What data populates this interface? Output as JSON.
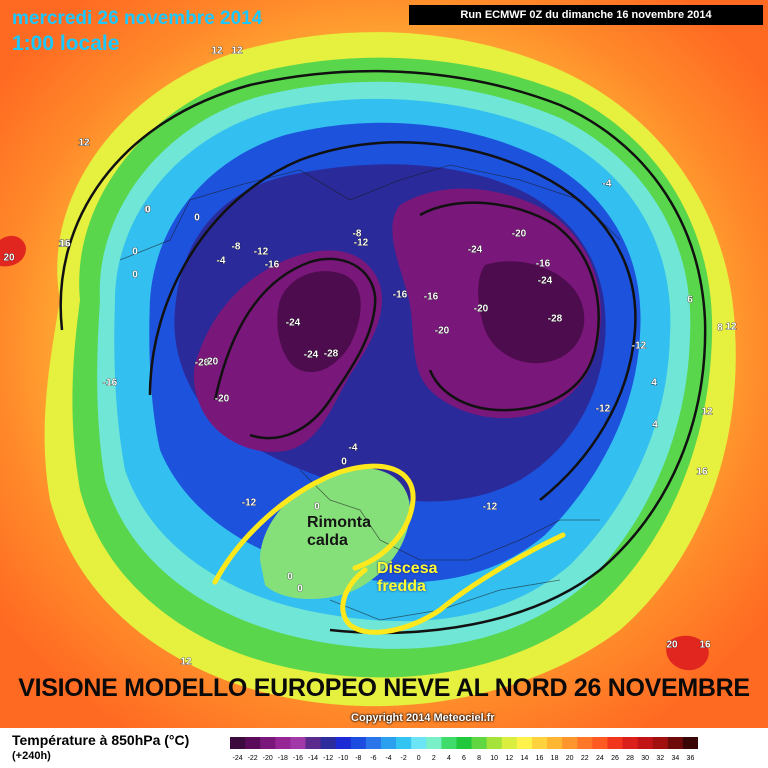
{
  "header": {
    "date": "mercredi 26 novembre 2014",
    "time": "1:00 locale",
    "run": "Run ECMWF 0Z du dimanche 16 novembre 2014"
  },
  "caption": "VISIONE MODELLO EUROPEO NEVE AL NORD 26 NOVEMBRE",
  "copyright": "Copyright 2014 Meteociel.fr",
  "legend": {
    "title": "Température à 850hPa (°C)",
    "subtitle": "(+240h)",
    "ticks": [
      "-24",
      "-22",
      "-20",
      "-18",
      "-16",
      "-14",
      "-12",
      "-10",
      "-8",
      "-6",
      "-4",
      "-2",
      "0",
      "2",
      "4",
      "6",
      "8",
      "10",
      "12",
      "14",
      "16",
      "18",
      "20",
      "22",
      "24",
      "26",
      "28",
      "30",
      "32",
      "34",
      "36"
    ],
    "colors": [
      "#3d0a3d",
      "#5a0b5a",
      "#7a177a",
      "#962596",
      "#a13aa8",
      "#5a2a8c",
      "#2c2c9c",
      "#1d2bd6",
      "#1c4de0",
      "#2a75ea",
      "#2aa0ef",
      "#34c4f2",
      "#6be4f5",
      "#79f0c8",
      "#3fdc6c",
      "#22c83c",
      "#60d640",
      "#a6e23c",
      "#d9ee3e",
      "#fff24a",
      "#ffd23e",
      "#ffb633",
      "#ff952d",
      "#ff7727",
      "#ff5a22",
      "#f2361e",
      "#db1f1b",
      "#c21317",
      "#a1100f",
      "#6e0a0a",
      "#3a0505"
    ]
  },
  "annotations": {
    "warm": [
      "Rimonta",
      "calda"
    ],
    "cold": [
      "Discesa",
      "fredda"
    ]
  },
  "labels": [
    {
      "t": "12"
    },
    {
      "t": "12"
    },
    {
      "t": "12"
    },
    {
      "t": "20"
    },
    {
      "t": "16"
    },
    {
      "t": "0"
    },
    {
      "t": "0"
    },
    {
      "t": "0"
    },
    {
      "t": "0"
    },
    {
      "t": "-4"
    },
    {
      "t": "-8"
    },
    {
      "t": "-12"
    },
    {
      "t": "-16"
    },
    {
      "t": "-8"
    },
    {
      "t": "-12"
    },
    {
      "t": "-24"
    },
    {
      "t": "-20"
    },
    {
      "t": "-16"
    },
    {
      "t": "-24"
    },
    {
      "t": "-20"
    },
    {
      "t": "-16"
    },
    {
      "t": "-16"
    },
    {
      "t": "-20"
    },
    {
      "t": "-20"
    },
    {
      "t": "-28"
    },
    {
      "t": "-24"
    },
    {
      "t": "-24"
    },
    {
      "t": "-28"
    },
    {
      "t": "-20"
    },
    {
      "t": "-20"
    },
    {
      "t": "-16"
    },
    {
      "t": "-12"
    },
    {
      "t": "-12"
    },
    {
      "t": "-12"
    },
    {
      "t": "-12"
    },
    {
      "t": "-4"
    },
    {
      "t": "0"
    },
    {
      "t": "-4"
    },
    {
      "t": "0"
    },
    {
      "t": "0"
    },
    {
      "t": "0"
    },
    {
      "t": "0"
    },
    {
      "t": "8"
    },
    {
      "t": "12"
    },
    {
      "t": "12"
    },
    {
      "t": "16"
    },
    {
      "t": "16"
    },
    {
      "t": "12"
    },
    {
      "t": "4"
    },
    {
      "t": "4"
    },
    {
      "t": "20"
    },
    {
      "t": "16"
    },
    {
      "t": "12"
    },
    {
      "t": "6"
    }
  ]
}
